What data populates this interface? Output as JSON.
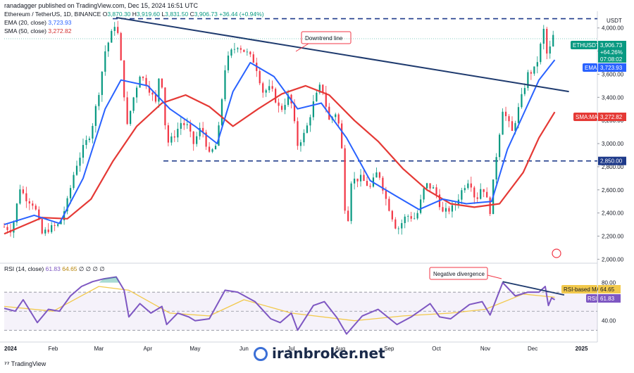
{
  "header": {
    "published": "ranadagger published on TradingView.com, Dec 15, 2024 16:51 UTC",
    "symbol_line": "Ethereum / TetherUS, 1D, BINANCE",
    "ohlc": {
      "O": "3,870.30",
      "H": "3,919.60",
      "L": "3,831.50",
      "C": "3,906.73",
      "change": "+36.44 (+0.94%)"
    },
    "ema_label": "EMA (20, close)",
    "ema_value": "3,723.93",
    "sma_label": "SMA (50, close)",
    "sma_value": "3,272.82",
    "rsi_label": "RSI (14, close)",
    "rsi_value": "61.83",
    "rsi_extra": "64.65",
    "rsi_zeros": "∅ ∅ ∅ ∅"
  },
  "currency": "USDT",
  "badges": {
    "symbol": "ETHUSDT",
    "price": "3,906.73",
    "pct": "+64.26%",
    "countdown": "07:08:02",
    "ema_tag": "EMA",
    "ema_val": "3,723.93",
    "sma_tag": "SMA:MA",
    "sma_val": "3,272.82",
    "support": "2,850.00",
    "rsi_ma_tag": "RSI-based MA",
    "rsi_ma_val": "64.65",
    "rsi_tag": "RSI",
    "rsi_val": "61.83"
  },
  "annotations": {
    "downtrend": "Downtrend line",
    "divergence": "Negative divergence"
  },
  "footer": {
    "brand": "TradingView",
    "watermark": "iranbroker.net"
  },
  "colors": {
    "up": "#089981",
    "down": "#f23645",
    "ema": "#2962ff",
    "sma": "#e53935",
    "trend": "#1e3a6e",
    "rsi": "#7e57c2",
    "rsi_ma": "#f2c94c"
  },
  "chart_data": {
    "type": "candlestick",
    "title": "Ethereum / TetherUS, 1D, BINANCE",
    "y_ticks": [
      "4,000.00",
      "3,800.00",
      "3,600.00",
      "3,400.00",
      "3,200.00",
      "3,000.00",
      "2,800.00",
      "2,600.00",
      "2,400.00",
      "2,200.00",
      "2,000.00"
    ],
    "y_tick_values": [
      4000,
      3800,
      3600,
      3400,
      3200,
      3000,
      2800,
      2600,
      2400,
      2200,
      2000
    ],
    "ylim": [
      1990,
      4120
    ],
    "x_ticks": [
      "2024",
      "Feb",
      "Mar",
      "Apr",
      "May",
      "Jun",
      "Jul",
      "Aug",
      "Sep",
      "Oct",
      "Nov",
      "Dec",
      "2025"
    ],
    "rsi_ticks": [
      "80.00",
      "40.00"
    ],
    "rsi_tick_values": [
      80,
      40
    ],
    "rsi_lim": [
      25,
      93
    ],
    "rsi_band": [
      30,
      70
    ],
    "horizontal_levels": [
      4080,
      2850
    ],
    "downtrend_line": {
      "from": [
        "2024-03-12",
        4090
      ],
      "to": [
        "2024-12-24",
        3450
      ]
    },
    "divergence_line": {
      "from": [
        "2024-11-12",
        81
      ],
      "to": [
        "2024-12-21",
        67
      ]
    },
    "price_path": [
      [
        "2024-01-01",
        2280
      ],
      [
        "2024-01-06",
        2250
      ],
      [
        "2024-01-11",
        2620
      ],
      [
        "2024-01-14",
        2540
      ],
      [
        "2024-01-20",
        2470
      ],
      [
        "2024-01-25",
        2220
      ],
      [
        "2024-01-29",
        2260
      ],
      [
        "2024-02-05",
        2300
      ],
      [
        "2024-02-10",
        2500
      ],
      [
        "2024-02-15",
        2790
      ],
      [
        "2024-02-20",
        2960
      ],
      [
        "2024-02-25",
        3100
      ],
      [
        "2024-03-01",
        3450
      ],
      [
        "2024-03-05",
        3800
      ],
      [
        "2024-03-09",
        3950
      ],
      [
        "2024-03-12",
        4070
      ],
      [
        "2024-03-15",
        3700
      ],
      [
        "2024-03-19",
        3150
      ],
      [
        "2024-03-22",
        3350
      ],
      [
        "2024-03-27",
        3600
      ],
      [
        "2024-04-01",
        3500
      ],
      [
        "2024-04-06",
        3350
      ],
      [
        "2024-04-09",
        3680
      ],
      [
        "2024-04-13",
        3000
      ],
      [
        "2024-04-17",
        3050
      ],
      [
        "2024-04-22",
        3180
      ],
      [
        "2024-04-26",
        3150
      ],
      [
        "2024-04-30",
        3000
      ],
      [
        "2024-05-05",
        3150
      ],
      [
        "2024-05-10",
        2900
      ],
      [
        "2024-05-15",
        3000
      ],
      [
        "2024-05-20",
        3650
      ],
      [
        "2024-05-23",
        3780
      ],
      [
        "2024-05-28",
        3850
      ],
      [
        "2024-06-03",
        3780
      ],
      [
        "2024-06-08",
        3700
      ],
      [
        "2024-06-13",
        3450
      ],
      [
        "2024-06-18",
        3480
      ],
      [
        "2024-06-24",
        3280
      ],
      [
        "2024-06-30",
        3430
      ],
      [
        "2024-07-05",
        2990
      ],
      [
        "2024-07-10",
        3100
      ],
      [
        "2024-07-15",
        3350
      ],
      [
        "2024-07-20",
        3520
      ],
      [
        "2024-07-25",
        3200
      ],
      [
        "2024-07-30",
        3280
      ],
      [
        "2024-08-02",
        2950
      ],
      [
        "2024-08-05",
        2200
      ],
      [
        "2024-08-08",
        2680
      ],
      [
        "2024-08-14",
        2700
      ],
      [
        "2024-08-20",
        2620
      ],
      [
        "2024-08-25",
        2770
      ],
      [
        "2024-08-30",
        2520
      ],
      [
        "2024-09-06",
        2250
      ],
      [
        "2024-09-12",
        2380
      ],
      [
        "2024-09-18",
        2350
      ],
      [
        "2024-09-24",
        2650
      ],
      [
        "2024-09-30",
        2600
      ],
      [
        "2024-10-05",
        2400
      ],
      [
        "2024-10-12",
        2450
      ],
      [
        "2024-10-18",
        2620
      ],
      [
        "2024-10-22",
        2700
      ],
      [
        "2024-10-26",
        2500
      ],
      [
        "2024-10-30",
        2650
      ],
      [
        "2024-11-04",
        2420
      ],
      [
        "2024-11-08",
        2900
      ],
      [
        "2024-11-12",
        3300
      ],
      [
        "2024-11-18",
        3100
      ],
      [
        "2024-11-23",
        3350
      ],
      [
        "2024-11-28",
        3600
      ],
      [
        "2024-12-03",
        3650
      ],
      [
        "2024-12-08",
        3980
      ],
      [
        "2024-12-09",
        3850
      ],
      [
        "2024-12-11",
        3700
      ],
      [
        "2024-12-13",
        3950
      ],
      [
        "2024-12-15",
        3907
      ]
    ],
    "ema_path": [
      [
        "2024-01-01",
        2300
      ],
      [
        "2024-01-20",
        2380
      ],
      [
        "2024-02-05",
        2310
      ],
      [
        "2024-02-20",
        2700
      ],
      [
        "2024-03-05",
        3300
      ],
      [
        "2024-03-15",
        3550
      ],
      [
        "2024-04-01",
        3500
      ],
      [
        "2024-04-15",
        3300
      ],
      [
        "2024-05-01",
        3150
      ],
      [
        "2024-05-15",
        3000
      ],
      [
        "2024-05-25",
        3450
      ],
      [
        "2024-06-05",
        3700
      ],
      [
        "2024-06-20",
        3580
      ],
      [
        "2024-07-05",
        3300
      ],
      [
        "2024-07-20",
        3350
      ],
      [
        "2024-08-05",
        3050
      ],
      [
        "2024-08-20",
        2680
      ],
      [
        "2024-09-05",
        2550
      ],
      [
        "2024-09-20",
        2430
      ],
      [
        "2024-10-05",
        2520
      ],
      [
        "2024-10-20",
        2480
      ],
      [
        "2024-11-05",
        2500
      ],
      [
        "2024-11-15",
        2950
      ],
      [
        "2024-11-25",
        3250
      ],
      [
        "2024-12-05",
        3550
      ],
      [
        "2024-12-15",
        3724
      ]
    ],
    "sma_path": [
      [
        "2024-01-01",
        2220
      ],
      [
        "2024-01-25",
        2360
      ],
      [
        "2024-02-10",
        2350
      ],
      [
        "2024-02-25",
        2520
      ],
      [
        "2024-03-10",
        2850
      ],
      [
        "2024-03-25",
        3150
      ],
      [
        "2024-04-10",
        3350
      ],
      [
        "2024-04-25",
        3420
      ],
      [
        "2024-05-10",
        3320
      ],
      [
        "2024-05-25",
        3150
      ],
      [
        "2024-06-10",
        3300
      ],
      [
        "2024-06-25",
        3430
      ],
      [
        "2024-07-10",
        3500
      ],
      [
        "2024-07-25",
        3420
      ],
      [
        "2024-08-10",
        3200
      ],
      [
        "2024-08-25",
        3020
      ],
      [
        "2024-09-10",
        2780
      ],
      [
        "2024-09-25",
        2600
      ],
      [
        "2024-10-10",
        2480
      ],
      [
        "2024-10-25",
        2450
      ],
      [
        "2024-11-10",
        2480
      ],
      [
        "2024-11-25",
        2750
      ],
      [
        "2024-12-05",
        3050
      ],
      [
        "2024-12-15",
        3273
      ]
    ],
    "rsi_path": [
      [
        "2024-01-01",
        53
      ],
      [
        "2024-01-08",
        50
      ],
      [
        "2024-01-13",
        62
      ],
      [
        "2024-01-22",
        38
      ],
      [
        "2024-01-29",
        52
      ],
      [
        "2024-02-05",
        50
      ],
      [
        "2024-02-12",
        66
      ],
      [
        "2024-02-19",
        76
      ],
      [
        "2024-02-26",
        81
      ],
      [
        "2024-03-04",
        84
      ],
      [
        "2024-03-12",
        86
      ],
      [
        "2024-03-17",
        72
      ],
      [
        "2024-03-20",
        44
      ],
      [
        "2024-03-27",
        58
      ],
      [
        "2024-04-03",
        48
      ],
      [
        "2024-04-10",
        55
      ],
      [
        "2024-04-13",
        36
      ],
      [
        "2024-04-20",
        48
      ],
      [
        "2024-04-27",
        44
      ],
      [
        "2024-05-01",
        40
      ],
      [
        "2024-05-10",
        42
      ],
      [
        "2024-05-20",
        72
      ],
      [
        "2024-05-28",
        70
      ],
      [
        "2024-06-08",
        60
      ],
      [
        "2024-06-18",
        42
      ],
      [
        "2024-06-24",
        38
      ],
      [
        "2024-07-01",
        48
      ],
      [
        "2024-07-05",
        30
      ],
      [
        "2024-07-15",
        56
      ],
      [
        "2024-07-22",
        60
      ],
      [
        "2024-07-30",
        43
      ],
      [
        "2024-08-05",
        26
      ],
      [
        "2024-08-15",
        45
      ],
      [
        "2024-08-25",
        52
      ],
      [
        "2024-09-06",
        36
      ],
      [
        "2024-09-15",
        44
      ],
      [
        "2024-09-27",
        58
      ],
      [
        "2024-10-03",
        44
      ],
      [
        "2024-10-10",
        42
      ],
      [
        "2024-10-22",
        57
      ],
      [
        "2024-10-30",
        60
      ],
      [
        "2024-11-04",
        46
      ],
      [
        "2024-11-12",
        80
      ],
      [
        "2024-11-20",
        66
      ],
      [
        "2024-11-28",
        70
      ],
      [
        "2024-12-05",
        70
      ],
      [
        "2024-12-09",
        76
      ],
      [
        "2024-12-11",
        56
      ],
      [
        "2024-12-13",
        64
      ],
      [
        "2024-12-15",
        62
      ]
    ],
    "rsi_ma_path": [
      [
        "2024-01-01",
        55
      ],
      [
        "2024-02-01",
        50
      ],
      [
        "2024-03-01",
        76
      ],
      [
        "2024-03-20",
        72
      ],
      [
        "2024-04-15",
        48
      ],
      [
        "2024-05-10",
        45
      ],
      [
        "2024-06-01",
        62
      ],
      [
        "2024-07-01",
        48
      ],
      [
        "2024-08-10",
        40
      ],
      [
        "2024-09-10",
        45
      ],
      [
        "2024-10-10",
        48
      ],
      [
        "2024-11-01",
        52
      ],
      [
        "2024-11-25",
        68
      ],
      [
        "2024-12-15",
        64.65
      ]
    ]
  }
}
